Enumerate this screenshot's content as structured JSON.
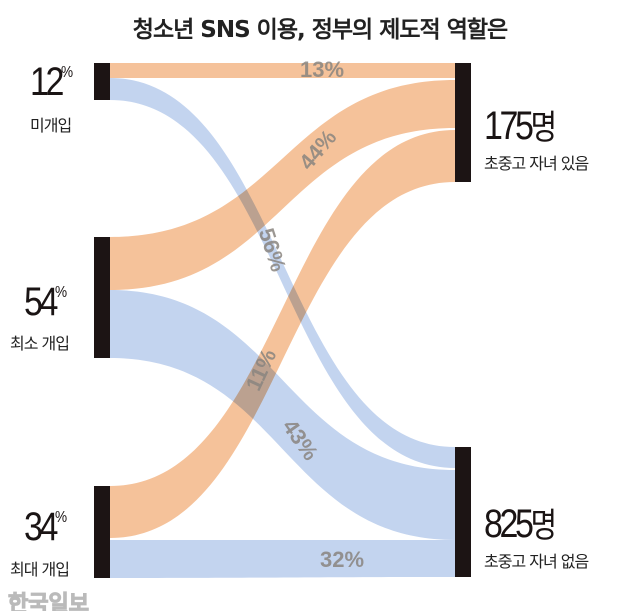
{
  "chart_data": {
    "type": "sankey",
    "title": "청소년 SNS 이용, 정부의 제도적 역할은",
    "sources": [
      {
        "label": "미개입",
        "value": "12",
        "unit": "%"
      },
      {
        "label": "최소 개입",
        "value": "54",
        "unit": "%"
      },
      {
        "label": "최대 개입",
        "value": "34",
        "unit": "%"
      }
    ],
    "targets": [
      {
        "label": "초중고 자녀 있음",
        "value": "175",
        "unit": "명"
      },
      {
        "label": "초중고 자녀 없음",
        "value": "825",
        "unit": "명"
      }
    ],
    "flows": [
      {
        "source": 0,
        "target": 0,
        "label": "13%",
        "value": 13
      },
      {
        "source": 1,
        "target": 0,
        "label": "44%",
        "value": 44
      },
      {
        "source": 2,
        "target": 0,
        "label": "56%",
        "value": 56
      },
      {
        "source": 0,
        "target": 1,
        "label": "11%",
        "value": 11
      },
      {
        "source": 1,
        "target": 1,
        "label": "43%",
        "value": 43
      },
      {
        "source": 2,
        "target": 1,
        "label": "32%",
        "value": 32
      }
    ],
    "colors": {
      "target0_flow": "#f5c29a",
      "target1_flow": "#c3d4ef",
      "node": "#1c1414"
    }
  },
  "watermark": "한국일보"
}
